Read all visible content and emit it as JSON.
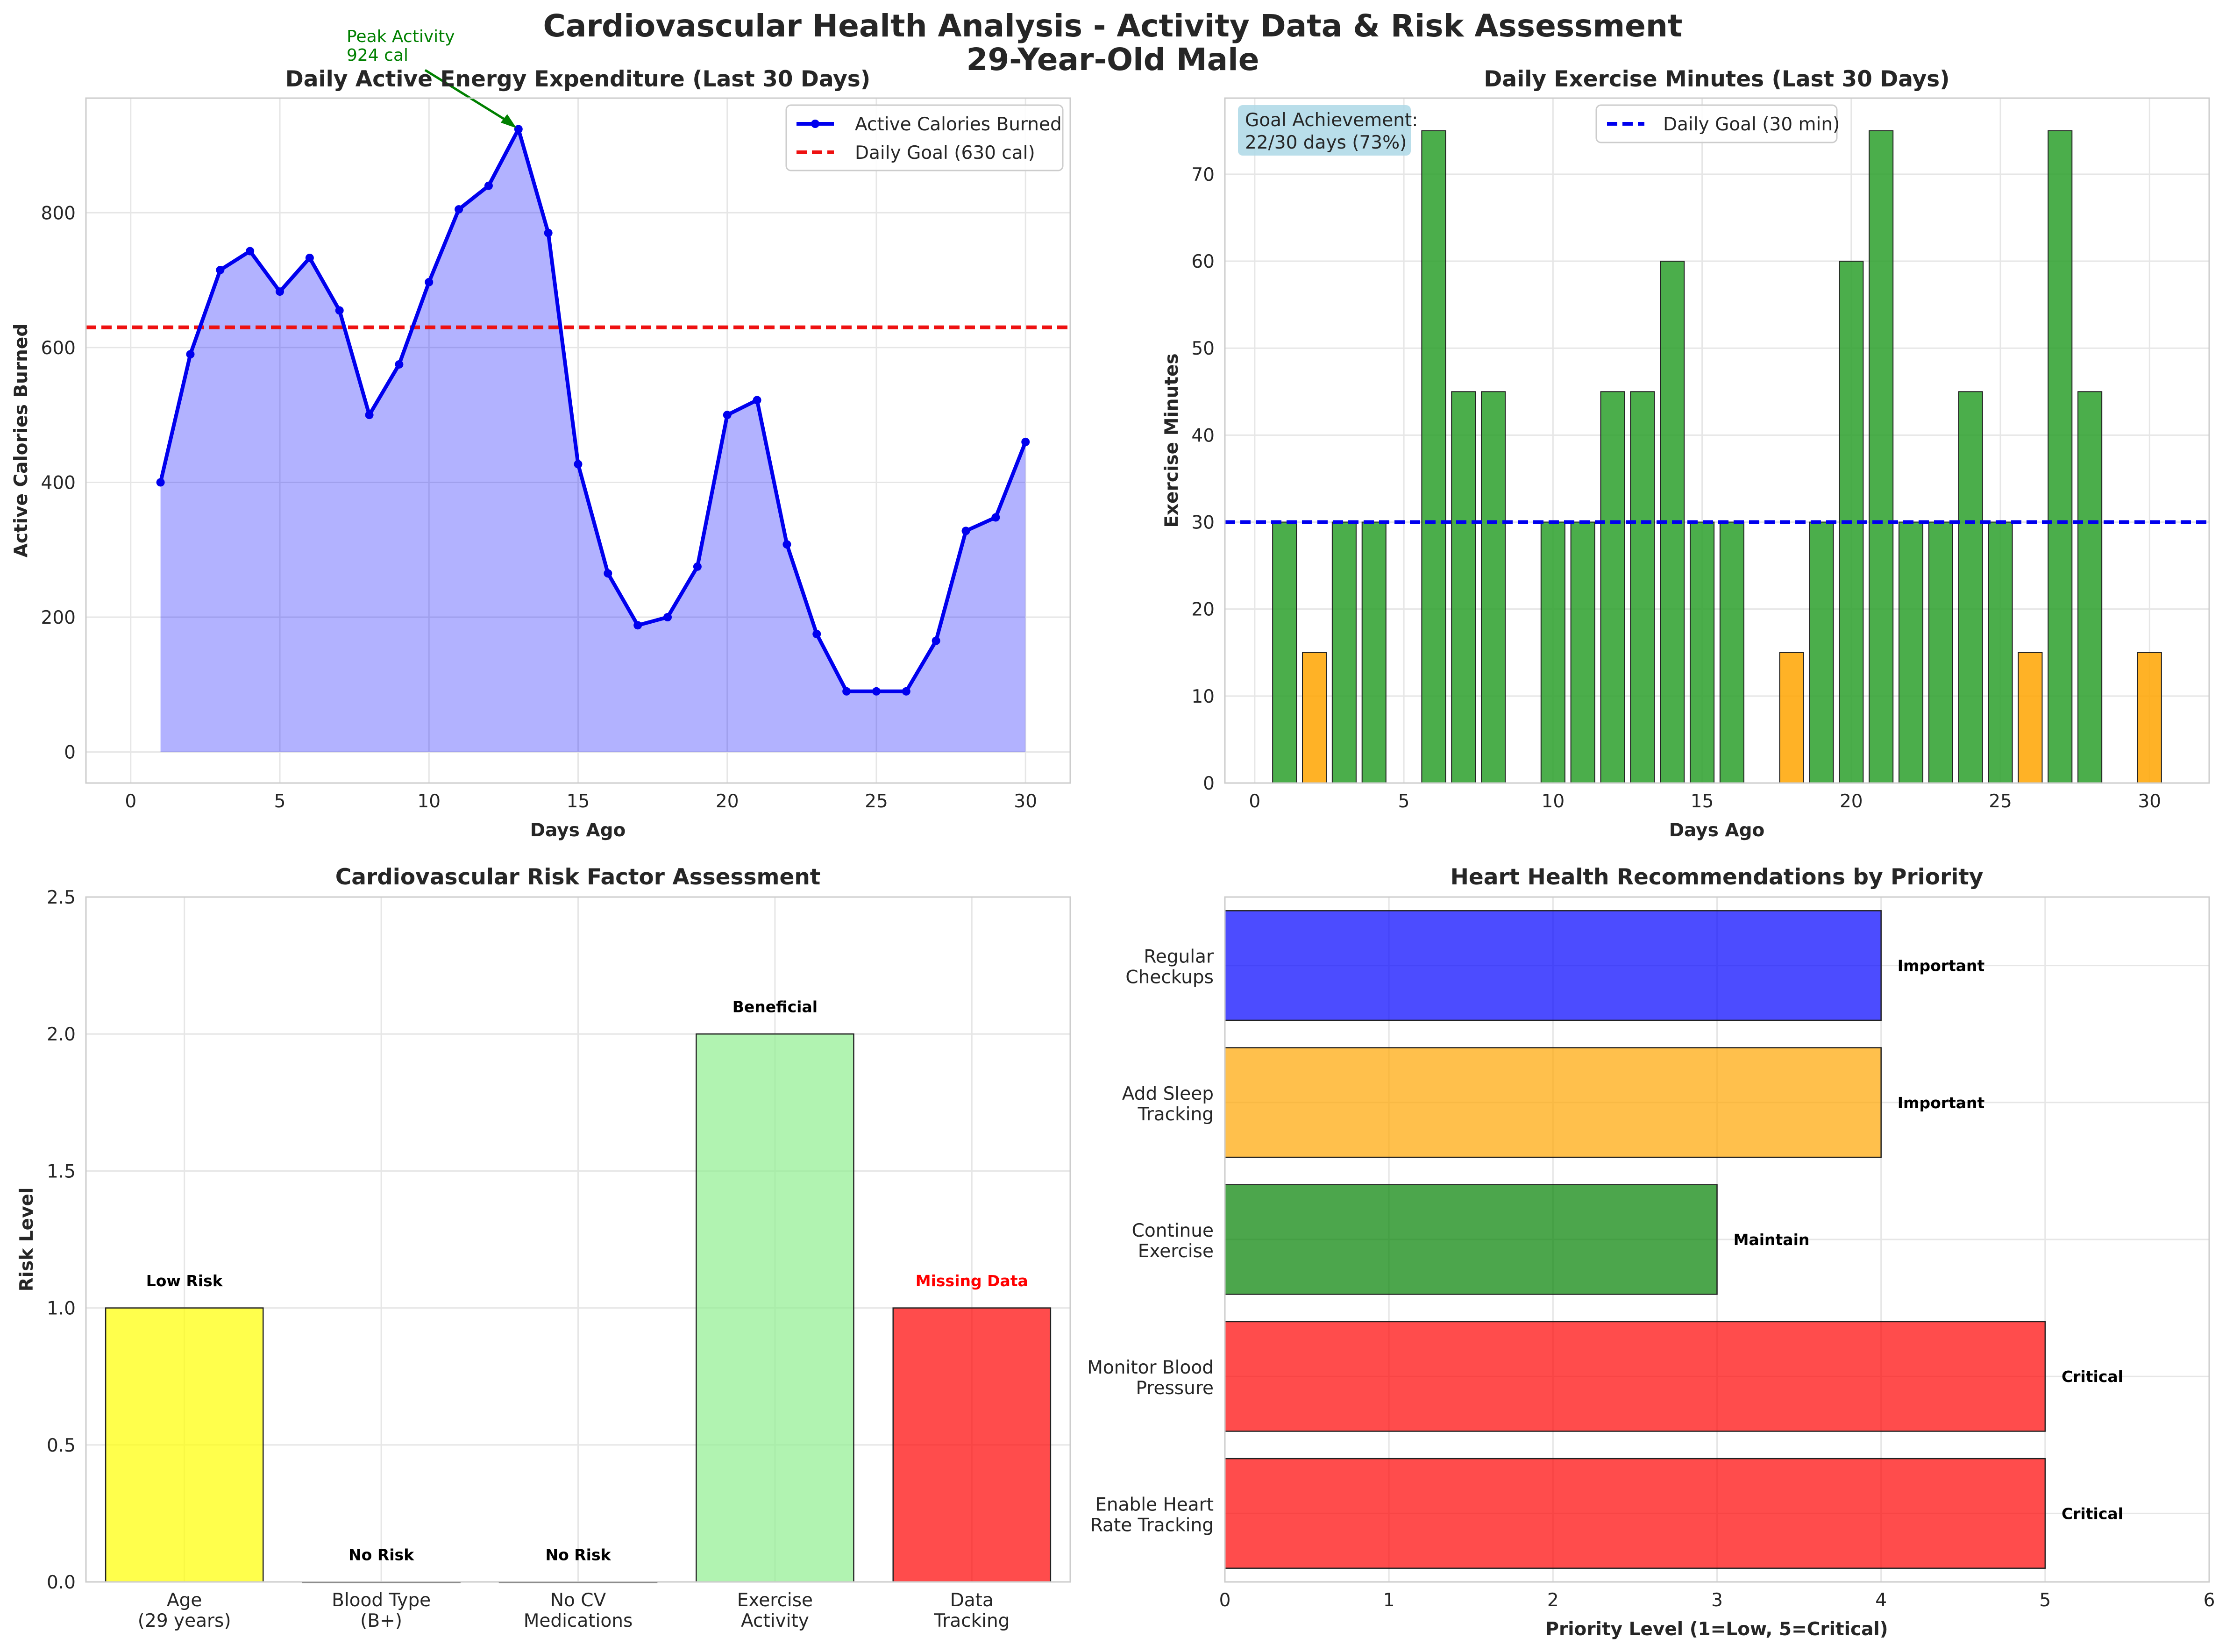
{
  "figure": {
    "suptitle_line1": "Cardiovascular Health Analysis - Activity Data & Risk Assessment",
    "suptitle_line2": "29-Year-Old Male"
  },
  "chart_data": [
    {
      "type": "area",
      "title": "Daily Active Energy Expenditure (Last 30 Days)",
      "xlabel": "Days Ago",
      "ylabel": "Active Calories Burned",
      "xlim": [
        -1.5,
        31.5
      ],
      "ylim": [
        -46,
        970
      ],
      "xticks": [
        0,
        5,
        10,
        15,
        20,
        25,
        30
      ],
      "yticks": [
        0,
        200,
        400,
        600,
        800
      ],
      "x": [
        1,
        2,
        3,
        4,
        5,
        6,
        7,
        8,
        9,
        10,
        11,
        12,
        13,
        14,
        15,
        16,
        17,
        18,
        19,
        20,
        21,
        22,
        23,
        24,
        25,
        26,
        27,
        28,
        29,
        30
      ],
      "series": [
        {
          "name": "Active Calories Burned",
          "color": "#0000ee",
          "values": [
            400,
            590,
            715,
            743,
            683,
            733,
            655,
            500,
            575,
            697,
            805,
            840,
            924,
            770,
            427,
            265,
            188,
            200,
            275,
            500,
            522,
            308,
            175,
            90,
            90,
            90,
            165,
            328,
            348,
            460
          ]
        }
      ],
      "goal": {
        "value": 630,
        "label": "Daily Goal (630 cal)",
        "color": "#ee1111"
      },
      "annotation": {
        "line1": "Peak Activity",
        "line2": "924 cal",
        "x": 13,
        "y": 924,
        "color": "#008000"
      },
      "legend_position": "upper right",
      "grid": true
    },
    {
      "type": "bar",
      "title": "Daily Exercise Minutes (Last 30 Days)",
      "xlabel": "Days Ago",
      "ylabel": "Exercise Minutes",
      "xlim": [
        -1,
        32
      ],
      "ylim": [
        0,
        78.75
      ],
      "xticks": [
        0,
        5,
        10,
        15,
        20,
        25,
        30
      ],
      "yticks": [
        0,
        10,
        20,
        30,
        40,
        50,
        60,
        70
      ],
      "x": [
        1,
        2,
        3,
        4,
        5,
        6,
        7,
        8,
        9,
        10,
        11,
        12,
        13,
        14,
        15,
        16,
        17,
        18,
        19,
        20,
        21,
        22,
        23,
        24,
        25,
        26,
        27,
        28,
        29,
        30
      ],
      "values": [
        30,
        15,
        30,
        30,
        0,
        75,
        45,
        45,
        0,
        30,
        30,
        45,
        45,
        60,
        30,
        30,
        0,
        15,
        30,
        60,
        75,
        30,
        30,
        45,
        30,
        15,
        75,
        45,
        0,
        15
      ],
      "colors": {
        "met": "#2ca02c",
        "below": "#ffa500"
      },
      "goal": {
        "value": 30,
        "label": "Daily Goal (30 min)",
        "color": "#0000ee"
      },
      "info_box": {
        "line1": "Goal Achievement:",
        "line2": "22/30 days (73%)",
        "color": "#add8e6"
      },
      "legend_position": "upper center",
      "grid": true
    },
    {
      "type": "bar",
      "title": "Cardiovascular Risk Factor Assessment",
      "xlabel": "",
      "ylabel": "Risk Level",
      "ylim": [
        0,
        2.5
      ],
      "yticks": [
        "0.0",
        "0.5",
        "1.0",
        "1.5",
        "2.0",
        "2.5"
      ],
      "categories": [
        {
          "line1": "Age",
          "line2": "(29 years)"
        },
        {
          "line1": "Blood Type",
          "line2": "(B+)"
        },
        {
          "line1": "No CV",
          "line2": "Medications"
        },
        {
          "line1": "Exercise",
          "line2": "Activity"
        },
        {
          "line1": "Data",
          "line2": "Tracking"
        }
      ],
      "values": [
        1,
        0,
        0,
        2,
        1
      ],
      "colors": [
        "#ffff00",
        "#d3d3d3",
        "#d3d3d3",
        "#90ee90",
        "#ff0000"
      ],
      "labels": [
        "Low Risk",
        "No Risk",
        "No Risk",
        "Beneficial",
        "Missing Data"
      ],
      "label_colors": [
        "#000000",
        "#000000",
        "#000000",
        "#000000",
        "#ff0000"
      ],
      "grid": true
    },
    {
      "type": "bar",
      "orientation": "horizontal",
      "title": "Heart Health Recommendations by Priority",
      "xlabel": "Priority Level (1=Low, 5=Critical)",
      "xlim": [
        0,
        6
      ],
      "xticks": [
        0,
        1,
        2,
        3,
        4,
        5,
        6
      ],
      "categories": [
        {
          "line1": "Enable Heart",
          "line2": "Rate Tracking"
        },
        {
          "line1": "Monitor Blood",
          "line2": "Pressure"
        },
        {
          "line1": "Continue",
          "line2": "Exercise"
        },
        {
          "line1": "Add Sleep",
          "line2": "Tracking"
        },
        {
          "line1": "Regular",
          "line2": "Checkups"
        }
      ],
      "values": [
        5,
        5,
        3,
        4,
        4
      ],
      "colors": [
        "#ff0000",
        "#ff0000",
        "#008000",
        "#ffa500",
        "#0000ff"
      ],
      "labels": [
        "Critical",
        "Critical",
        "Maintain",
        "Important",
        "Important"
      ],
      "grid": true
    }
  ]
}
